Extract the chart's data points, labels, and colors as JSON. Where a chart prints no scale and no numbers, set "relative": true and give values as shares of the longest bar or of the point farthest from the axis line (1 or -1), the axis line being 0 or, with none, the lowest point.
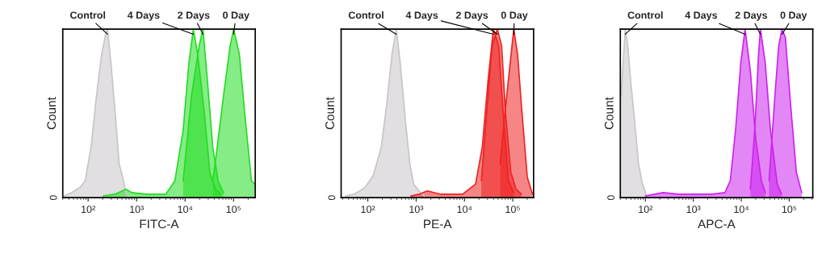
{
  "chart_data": [
    {
      "type": "area",
      "xlabel": "FITC-A",
      "ylabel": "Count",
      "relative": true,
      "log": "x",
      "xlim": [
        30,
        280000
      ],
      "xticks": [
        {
          "value": 100,
          "label": "10²"
        },
        {
          "value": 1000,
          "label": "10³"
        },
        {
          "value": 10000,
          "label": "10⁴"
        },
        {
          "value": 100000,
          "label": "10⁵"
        }
      ],
      "annotations": [
        "0"
      ],
      "grid": false,
      "legend": false,
      "series": [
        {
          "name": "Control",
          "color": "#c8c4c8",
          "x": [
            32,
            46,
            68,
            87,
            115,
            148,
            190,
            229,
            251,
            295,
            363,
            437,
            537,
            603,
            708
          ],
          "values": [
            0.01,
            0.03,
            0.06,
            0.1,
            0.3,
            0.6,
            0.85,
            0.97,
            1.0,
            0.8,
            0.5,
            0.2,
            0.1,
            0.02,
            0
          ]
        },
        {
          "name": "4 Days",
          "color": "#22dd22",
          "x": [
            204,
            355,
            603,
            794,
            1585,
            3981,
            6166,
            9120,
            12000,
            14800,
            18200,
            25100,
            32400,
            42700,
            55000
          ],
          "values": [
            0.01,
            0.02,
            0.05,
            0.03,
            0.02,
            0.02,
            0.1,
            0.4,
            0.8,
            1.0,
            0.85,
            0.5,
            0.15,
            0.05,
            0.02
          ]
        },
        {
          "name": "2 Days",
          "color": "#22dd22",
          "x": [
            9120,
            13500,
            19500,
            23400,
            28800,
            37200,
            47900,
            61700
          ],
          "values": [
            0.1,
            0.6,
            0.9,
            1.0,
            0.7,
            0.3,
            0.1,
            0.03
          ]
        },
        {
          "name": "0 Day",
          "color": "#22dd22",
          "x": [
            37200,
            44700,
            61700,
            85100,
            100000,
            132000,
            170000,
            234000,
            275000
          ],
          "values": [
            0.1,
            0.27,
            0.6,
            0.9,
            1.0,
            0.85,
            0.5,
            0.1,
            0.08
          ]
        }
      ]
    },
    {
      "type": "area",
      "xlabel": "PE-A",
      "ylabel": "Count",
      "relative": true,
      "log": "x",
      "xlim": [
        28,
        270000
      ],
      "xticks": [
        {
          "value": 100,
          "label": "10²"
        },
        {
          "value": 1000,
          "label": "10³"
        },
        {
          "value": 10000,
          "label": "10⁴"
        },
        {
          "value": 100000,
          "label": "10⁵"
        }
      ],
      "annotations": [
        "0"
      ],
      "grid": false,
      "legend": false,
      "series": [
        {
          "name": "Control",
          "color": "#c8c4c8",
          "x": [
            34,
            52,
            87,
            129,
            190,
            245,
            316,
            389,
            468,
            603,
            741,
            891,
            1150,
            1480
          ],
          "values": [
            0.01,
            0.02,
            0.06,
            0.13,
            0.3,
            0.55,
            0.85,
            1.0,
            0.8,
            0.45,
            0.2,
            0.08,
            0.04,
            0.01
          ]
        },
        {
          "name": "4 Days",
          "color": "#ee2222",
          "x": [
            776,
            1150,
            1700,
            3240,
            9120,
            17000,
            23400,
            30900,
            39800,
            51300,
            61700,
            81300,
            105000
          ],
          "values": [
            0.01,
            0.02,
            0.04,
            0.02,
            0.02,
            0.08,
            0.3,
            0.7,
            1.0,
            0.9,
            0.55,
            0.1,
            0.03
          ]
        },
        {
          "name": "2 Days",
          "color": "#ee2222",
          "x": [
            22400,
            28800,
            37200,
            47900,
            58900,
            70800,
            91200,
            117000,
            151000
          ],
          "values": [
            0.1,
            0.5,
            0.9,
            1.0,
            0.9,
            0.5,
            0.15,
            0.05,
            0.02
          ]
        },
        {
          "name": "0 Day",
          "color": "#ee2222",
          "x": [
            55000,
            66100,
            81300,
            105000,
            126000,
            151000,
            200000,
            257000
          ],
          "values": [
            0.2,
            0.45,
            0.7,
            1.0,
            0.85,
            0.55,
            0.12,
            0.02
          ]
        }
      ]
    },
    {
      "type": "area",
      "xlabel": "APC-A",
      "ylabel": "Count",
      "relative": true,
      "log": "x",
      "xlim": [
        30,
        310000
      ],
      "xticks": [
        {
          "value": 100,
          "label": "10²"
        },
        {
          "value": 1000,
          "label": "10³"
        },
        {
          "value": 10000,
          "label": "10⁴"
        },
        {
          "value": 100000,
          "label": "10⁵"
        }
      ],
      "annotations": [
        "0"
      ],
      "grid": false,
      "legend": false,
      "series": [
        {
          "name": "Control",
          "color": "#c8c4c8",
          "x": [
            31,
            38,
            43,
            49,
            60,
            72,
            87,
            107
          ],
          "values": [
            0.6,
            1.0,
            0.9,
            0.7,
            0.45,
            0.2,
            0.08,
            0.01
          ]
        },
        {
          "name": "4 Days",
          "color": "#cc22ee",
          "x": [
            100,
            234,
            501,
            2400,
            4570,
            5890,
            7590,
            9770,
            12000,
            15500,
            20000,
            26300,
            31600
          ],
          "values": [
            0.01,
            0.03,
            0.02,
            0.02,
            0.03,
            0.1,
            0.4,
            0.8,
            1.0,
            0.75,
            0.35,
            0.1,
            0.03
          ]
        },
        {
          "name": "2 Days",
          "color": "#cc22ee",
          "x": [
            15500,
            19100,
            22900,
            25100,
            31600,
            40700,
            56200,
            69200
          ],
          "values": [
            0.05,
            0.4,
            0.85,
            1.0,
            0.8,
            0.4,
            0.08,
            0.02
          ]
        },
        {
          "name": "0 Day",
          "color": "#cc22ee",
          "x": [
            38000,
            50100,
            60300,
            70800,
            83200,
            107000,
            141000,
            182000
          ],
          "values": [
            0.1,
            0.6,
            0.9,
            1.0,
            0.95,
            0.55,
            0.15,
            0.03
          ]
        }
      ]
    }
  ]
}
